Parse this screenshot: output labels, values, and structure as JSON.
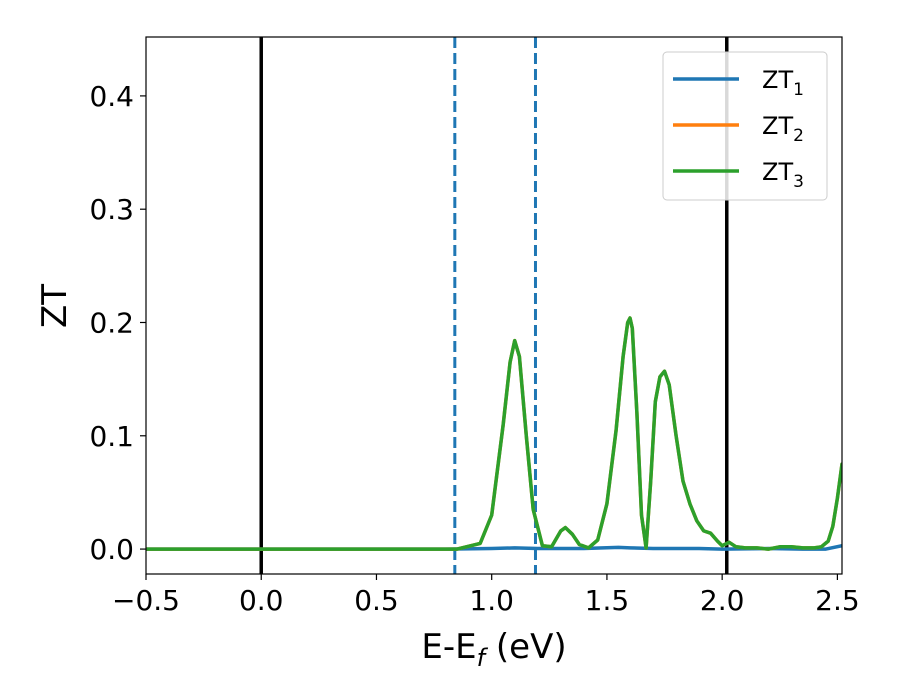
{
  "chart_data": {
    "type": "line",
    "xlabel": "E-E",
    "xlabel_subscript": "f",
    "xlabel_unit": " (eV)",
    "ylabel": "ZT",
    "xlim": [
      -0.5,
      2.52
    ],
    "ylim": [
      -0.022,
      0.452
    ],
    "x_ticks": [
      -0.5,
      0.0,
      0.5,
      1.0,
      1.5,
      2.0,
      2.5
    ],
    "x_tick_labels": [
      "−0.5",
      "0.0",
      "0.5",
      "1.0",
      "1.5",
      "2.0",
      "2.5"
    ],
    "y_ticks": [
      0.0,
      0.1,
      0.2,
      0.3,
      0.4
    ],
    "y_tick_labels": [
      "0.0",
      "0.1",
      "0.2",
      "0.3",
      "0.4"
    ],
    "grid": false,
    "legend_position": "top-right",
    "vertical_lines": [
      {
        "x": 0.0,
        "style": "solid",
        "color": "#000000"
      },
      {
        "x": 2.02,
        "style": "solid",
        "color": "#000000"
      },
      {
        "x": 0.84,
        "style": "dashed",
        "color": "#1f77b4"
      },
      {
        "x": 1.19,
        "style": "dashed",
        "color": "#1f77b4"
      }
    ],
    "series": [
      {
        "name": "ZT",
        "name_subscript": "1",
        "color": "#1f77b4",
        "x": [
          -0.5,
          0.8,
          1.0,
          1.1,
          1.2,
          1.4,
          1.55,
          1.6,
          1.7,
          1.9,
          2.0,
          2.2,
          2.35,
          2.45,
          2.52
        ],
        "y": [
          0.0,
          0.0,
          0.0005,
          0.001,
          0.0005,
          0.0005,
          0.0015,
          0.001,
          0.0005,
          0.0005,
          0.0,
          0.0005,
          0.0,
          0.0,
          0.003
        ]
      },
      {
        "name": "ZT",
        "name_subscript": "2",
        "color": "#ff7f0e",
        "x": [
          -0.5,
          0.85,
          0.95,
          1.0,
          1.05,
          1.08,
          1.1,
          1.12,
          1.15,
          1.18,
          1.22,
          1.26,
          1.3,
          1.32,
          1.35,
          1.38,
          1.42,
          1.46,
          1.5,
          1.54,
          1.57,
          1.59,
          1.6,
          1.61,
          1.63,
          1.65,
          1.67,
          1.69,
          1.71,
          1.73,
          1.75,
          1.77,
          1.8,
          1.83,
          1.86,
          1.89,
          1.92,
          1.95,
          1.98,
          2.0,
          2.03,
          2.06,
          2.1,
          2.15,
          2.2,
          2.25,
          2.3,
          2.35,
          2.4,
          2.43,
          2.46,
          2.48,
          2.5,
          2.52
        ],
        "y": [
          0.0,
          0.0,
          0.005,
          0.03,
          0.11,
          0.165,
          0.184,
          0.17,
          0.1,
          0.035,
          0.003,
          0.002,
          0.016,
          0.019,
          0.013,
          0.004,
          0.001,
          0.008,
          0.04,
          0.105,
          0.17,
          0.2,
          0.204,
          0.195,
          0.12,
          0.03,
          0.001,
          0.06,
          0.13,
          0.152,
          0.157,
          0.145,
          0.1,
          0.06,
          0.04,
          0.025,
          0.016,
          0.014,
          0.007,
          0.003,
          0.006,
          0.002,
          0.001,
          0.001,
          0.0,
          0.002,
          0.002,
          0.001,
          0.001,
          0.002,
          0.007,
          0.02,
          0.045,
          0.075
        ]
      },
      {
        "name": "ZT",
        "name_subscript": "3",
        "color": "#2ca02c",
        "x": [
          -0.5,
          0.85,
          0.95,
          1.0,
          1.05,
          1.08,
          1.1,
          1.12,
          1.15,
          1.18,
          1.22,
          1.26,
          1.3,
          1.32,
          1.35,
          1.38,
          1.42,
          1.46,
          1.5,
          1.54,
          1.57,
          1.59,
          1.6,
          1.61,
          1.63,
          1.65,
          1.67,
          1.69,
          1.71,
          1.73,
          1.75,
          1.77,
          1.8,
          1.83,
          1.86,
          1.89,
          1.92,
          1.95,
          1.98,
          2.0,
          2.03,
          2.06,
          2.1,
          2.15,
          2.2,
          2.25,
          2.3,
          2.35,
          2.4,
          2.43,
          2.46,
          2.48,
          2.5,
          2.52
        ],
        "y": [
          0.0,
          0.0,
          0.005,
          0.03,
          0.11,
          0.165,
          0.184,
          0.17,
          0.1,
          0.035,
          0.003,
          0.002,
          0.016,
          0.019,
          0.013,
          0.004,
          0.001,
          0.008,
          0.04,
          0.105,
          0.17,
          0.2,
          0.204,
          0.195,
          0.12,
          0.03,
          0.001,
          0.06,
          0.13,
          0.152,
          0.157,
          0.145,
          0.1,
          0.06,
          0.04,
          0.025,
          0.016,
          0.014,
          0.007,
          0.003,
          0.006,
          0.002,
          0.001,
          0.001,
          0.0,
          0.002,
          0.002,
          0.001,
          0.001,
          0.002,
          0.007,
          0.02,
          0.045,
          0.075
        ]
      }
    ]
  }
}
